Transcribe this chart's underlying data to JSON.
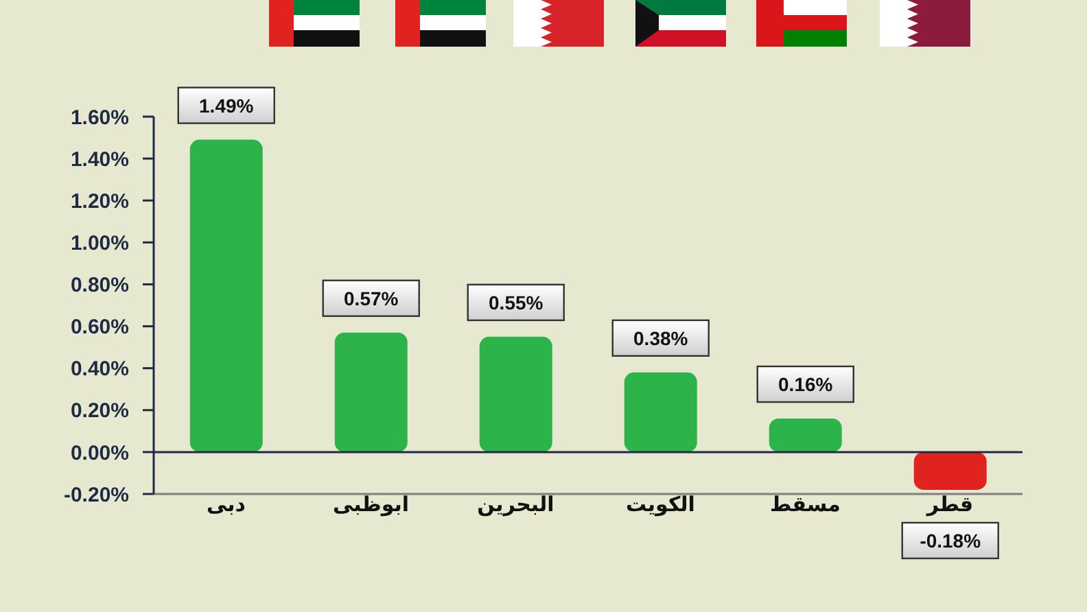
{
  "chart_data": {
    "type": "bar",
    "categories": [
      "دبى",
      "ابوظبى",
      "البحرين",
      "الكويت",
      "مسقط",
      "قطر"
    ],
    "values": [
      1.49,
      0.57,
      0.55,
      0.38,
      0.16,
      -0.18
    ],
    "colors": [
      "#2cb34a",
      "#2cb34a",
      "#2cb34a",
      "#2cb34a",
      "#2cb34a",
      "#e0231f"
    ],
    "value_labels": [
      "1.49%",
      "0.57%",
      "0.55%",
      "0.38%",
      "0.16%",
      "-0.18%"
    ],
    "ylim": [
      -0.2,
      1.6
    ],
    "yticks": [
      {
        "value": -0.2,
        "label": "-0.20%"
      },
      {
        "value": 0,
        "label": "0.00%"
      },
      {
        "value": 0.2,
        "label": "0.20%"
      },
      {
        "value": 0.4,
        "label": "0.40%"
      },
      {
        "value": 0.6,
        "label": "0.60%"
      },
      {
        "value": 0.8,
        "label": "0.80%"
      },
      {
        "value": 1,
        "label": "1.00%"
      },
      {
        "value": 1.2,
        "label": "1.20%"
      },
      {
        "value": 1.4,
        "label": "1.40%"
      },
      {
        "value": 1.6,
        "label": "1.60%"
      }
    ],
    "ref_lines": [
      {
        "axis": "y",
        "value": 0
      }
    ]
  }
}
